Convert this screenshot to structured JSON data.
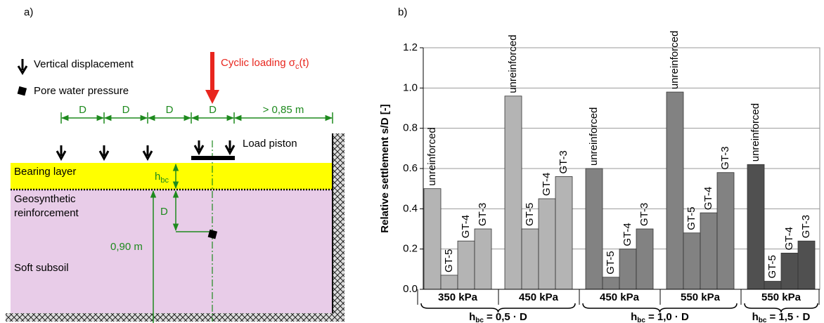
{
  "diagram": {
    "panel_label": "a)",
    "legend": {
      "displacement": "Vertical displacement",
      "pore_pressure": "Pore water pressure"
    },
    "cyclic_loading": {
      "text": "Cyclic loading σ",
      "subscript": "c",
      "suffix": "(t)"
    },
    "spacings": [
      "D",
      "D",
      "D",
      "D",
      "> 0,85 m"
    ],
    "load_piston": "Load piston",
    "bearing_layer": "Bearing layer",
    "layer_height": {
      "symbol": "h",
      "subscript": "bc"
    },
    "reinforcement": [
      "Geosynthetic",
      "reinforcement"
    ],
    "sensor_depth": "D",
    "subsoil_depth": "0,90 m",
    "soft_subsoil": "Soft subsoil"
  },
  "chart_data": {
    "type": "bar",
    "panel_label": "b)",
    "y_label": "Relative settlement s/D [-]",
    "ylim": [
      0,
      1.2
    ],
    "yticks": [
      {
        "value": 0,
        "label": "0.0"
      },
      0.2,
      0.4,
      0.6,
      0.8,
      {
        "value": 1,
        "label": "1.0"
      },
      1.2
    ],
    "grid": true,
    "groups": [
      {
        "name": "350 kPa",
        "color": "#b4b4b4",
        "categories": [
          "unreinforced",
          "GT-5",
          "GT-4",
          "GT-3"
        ],
        "values": [
          0.5,
          0.07,
          0.24,
          0.3
        ]
      },
      {
        "name": "450 kPa",
        "color": "#b4b4b4",
        "categories": [
          "unreinforced",
          "GT-5",
          "GT-4",
          "GT-3"
        ],
        "values": [
          0.96,
          0.3,
          0.45,
          0.56
        ]
      },
      {
        "name": "450 kPa",
        "color": "#828282",
        "categories": [
          "unreinforced",
          "GT-5",
          "GT-4",
          "GT-3"
        ],
        "values": [
          0.6,
          0.06,
          0.2,
          0.3
        ]
      },
      {
        "name": "550 kPa",
        "color": "#828282",
        "categories": [
          "unreinforced",
          "GT-5",
          "GT-4",
          "GT-3"
        ],
        "values": [
          0.98,
          0.28,
          0.38,
          0.58
        ]
      },
      {
        "name": "550 kPa",
        "color": "#505050",
        "categories": [
          "unreinforced",
          "GT-5",
          "GT-4",
          "GT-3"
        ],
        "values": [
          0.62,
          0.04,
          0.18,
          0.24
        ]
      }
    ],
    "layer_labels": [
      {
        "symbol": "h",
        "subscript": "bc",
        "text": "= 0,5 · D"
      },
      {
        "symbol": "h",
        "subscript": "bc",
        "text": "= 1,0 · D"
      },
      {
        "symbol": "h",
        "subscript": "bc",
        "text": "= 1,5 · D"
      }
    ]
  }
}
